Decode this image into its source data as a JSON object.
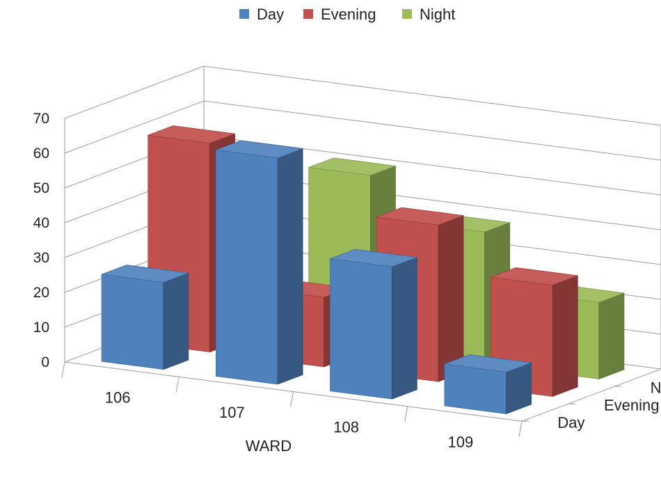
{
  "chart_data": {
    "type": "bar",
    "style": "3d-clustered-depth",
    "xlabel": "WARD",
    "ylabel": "",
    "categories": [
      "106",
      "107",
      "108",
      "109"
    ],
    "depth_labels": [
      "Day",
      "Evening",
      "Night"
    ],
    "ylim": [
      0,
      70
    ],
    "yticks": [
      "0",
      "10",
      "20",
      "30",
      "40",
      "50",
      "60",
      "70"
    ],
    "grid": true,
    "legend": "top-center",
    "series": [
      {
        "name": "Day",
        "color": "#4f81bd",
        "values": [
          25,
          65,
          38,
          12
        ]
      },
      {
        "name": "Evening",
        "color": "#c0504d",
        "values": [
          60,
          20,
          45,
          32
        ]
      },
      {
        "name": "Night",
        "color": "#9bbb59",
        "values": [
          0,
          50,
          38,
          22
        ]
      }
    ]
  }
}
